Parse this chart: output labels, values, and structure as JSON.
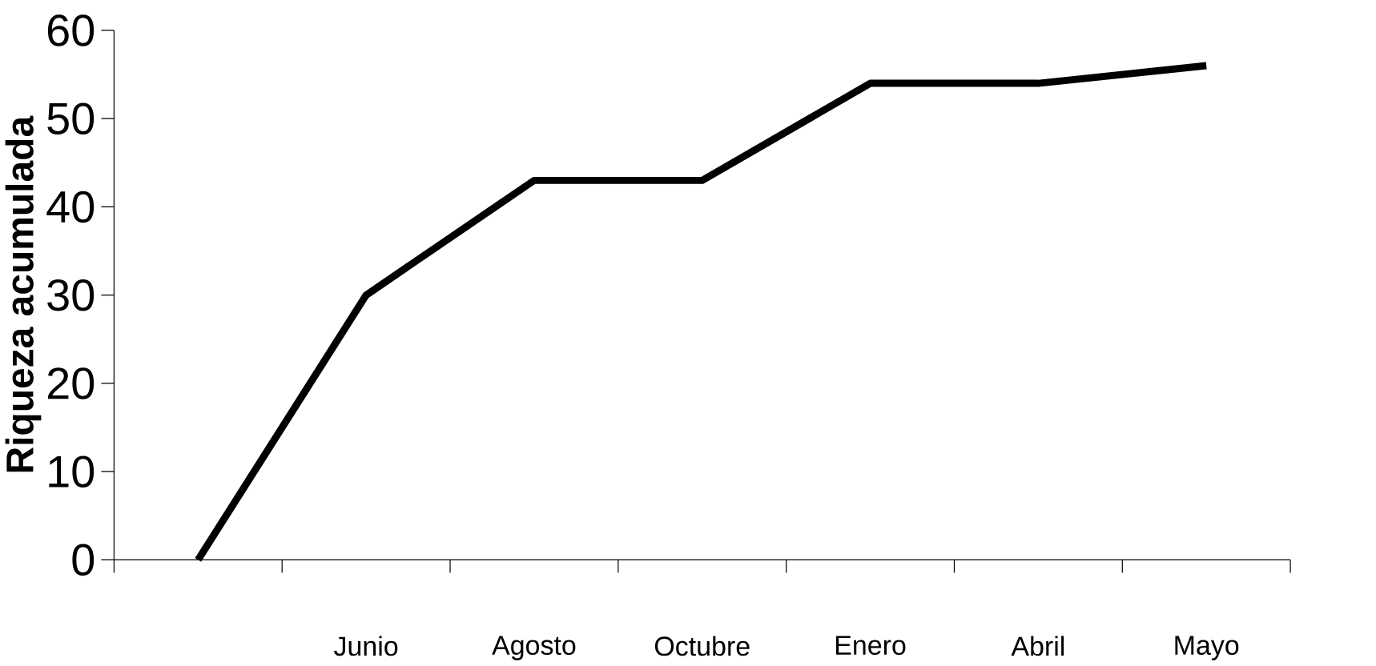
{
  "chart_data": {
    "type": "line",
    "ylabel": "Riqueza acumulada",
    "categories": [
      null,
      "Junio",
      "Agosto",
      "Octubre",
      "Enero",
      "Abril",
      "Mayo"
    ],
    "values": [
      0,
      30,
      43,
      43,
      54,
      54,
      56
    ],
    "color": "#000000",
    "ylim": [
      0,
      60
    ],
    "yticks": [
      0,
      10,
      20,
      30,
      40,
      50,
      60
    ],
    "marker": "none",
    "line_style": "solid"
  }
}
